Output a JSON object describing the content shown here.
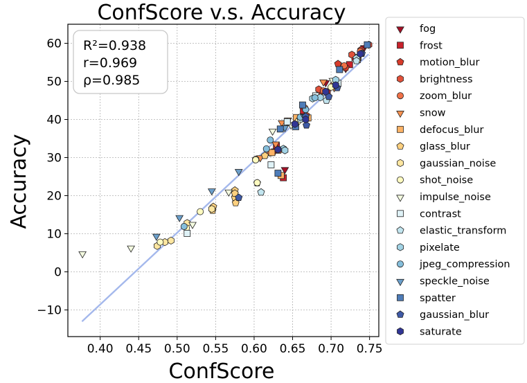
{
  "chart_data": {
    "type": "scatter",
    "title": "ConfScore  v.s.  Accuracy",
    "xlabel": "ConfScore",
    "ylabel": "Accuracy",
    "xlim": [
      0.358,
      0.762
    ],
    "ylim": [
      -17,
      65
    ],
    "xticks": [
      0.4,
      0.45,
      0.5,
      0.55,
      0.6,
      0.65,
      0.7,
      0.75
    ],
    "yticks": [
      -10,
      0,
      10,
      20,
      30,
      40,
      50,
      60
    ],
    "grid": true,
    "legend_position": "outside-right",
    "annotation": [
      "R²=0.938",
      "r=0.969",
      "ρ=0.985"
    ],
    "fit_line": {
      "x": [
        0.377,
        0.748
      ],
      "y": [
        -12.9,
        57.0
      ],
      "color": "#a4b8ec"
    },
    "series": [
      {
        "name": "fog",
        "marker": "tri-down",
        "color": "#a50f26",
        "points": [
          [
            0.693,
            49.8
          ],
          [
            0.719,
            53.5
          ],
          [
            0.743,
            59.0
          ],
          [
            0.664,
            43.1
          ],
          [
            0.64,
            27.0
          ],
          [
            0.627,
            31.9
          ],
          [
            0.681,
            46.2
          ],
          [
            0.705,
            50.3
          ]
        ]
      },
      {
        "name": "frost",
        "marker": "square",
        "color": "#c8222c",
        "points": [
          [
            0.724,
            54.4
          ],
          [
            0.731,
            56.3
          ],
          [
            0.695,
            47.3
          ],
          [
            0.638,
            24.7
          ],
          [
            0.629,
            33.1
          ],
          [
            0.664,
            42.3
          ]
        ]
      },
      {
        "name": "motion_blur",
        "marker": "pentagon",
        "color": "#d73b2a",
        "points": [
          [
            0.719,
            53.6
          ],
          [
            0.709,
            54.6
          ],
          [
            0.685,
            46.7
          ],
          [
            0.739,
            58.3
          ],
          [
            0.662,
            40.5
          ],
          [
            0.632,
            31.9
          ]
        ]
      },
      {
        "name": "brightness",
        "marker": "hexagon",
        "color": "#e2513a",
        "points": [
          [
            0.727,
            57.0
          ],
          [
            0.684,
            47.9
          ],
          [
            0.703,
            49.1
          ],
          [
            0.749,
            59.6
          ],
          [
            0.668,
            41.0
          ]
        ]
      },
      {
        "name": "zoom_blur",
        "marker": "circle",
        "color": "#ef7148",
        "points": [
          [
            0.738,
            57.9
          ],
          [
            0.717,
            54.1
          ],
          [
            0.69,
            47.5
          ],
          [
            0.666,
            43.0
          ],
          [
            0.633,
            32.0
          ],
          [
            0.621,
            31.2
          ]
        ]
      },
      {
        "name": "snow",
        "marker": "tri-down",
        "color": "#f8914f",
        "points": [
          [
            0.69,
            50.0
          ],
          [
            0.636,
            39.3
          ],
          [
            0.628,
            33.7
          ],
          [
            0.608,
            30.1
          ],
          [
            0.644,
            40.0
          ],
          [
            0.704,
            48.5
          ]
        ]
      },
      {
        "name": "defocus_blur",
        "marker": "square",
        "color": "#fdb366",
        "points": [
          [
            0.735,
            56.3
          ],
          [
            0.67,
            40.4
          ],
          [
            0.635,
            25.3
          ],
          [
            0.623,
            31.3
          ],
          [
            0.734,
            55.7
          ],
          [
            0.655,
            40.5
          ]
        ]
      },
      {
        "name": "glass_blur",
        "marker": "pentagon",
        "color": "#fdd07f",
        "points": [
          [
            0.575,
            21.4
          ],
          [
            0.547,
            17.1
          ],
          [
            0.575,
            19.5
          ],
          [
            0.576,
            18.1
          ],
          [
            0.546,
            16.1
          ],
          [
            0.614,
            30.5
          ],
          [
            0.604,
            23.3
          ],
          [
            0.575,
            20.6
          ]
        ]
      },
      {
        "name": "gaussian_noise",
        "marker": "hexagon",
        "color": "#fee6a0",
        "points": [
          [
            0.474,
            6.8
          ],
          [
            0.484,
            7.8
          ],
          [
            0.492,
            8.2
          ],
          [
            0.513,
            12.8
          ],
          [
            0.545,
            16.5
          ],
          [
            0.602,
            29.5
          ],
          [
            0.643,
            39.4
          ],
          [
            0.708,
            49.5
          ]
        ]
      },
      {
        "name": "shot_noise",
        "marker": "circle",
        "color": "#fffbc0",
        "points": [
          [
            0.478,
            7.8
          ],
          [
            0.512,
            11.5
          ],
          [
            0.53,
            15.8
          ],
          [
            0.602,
            29.4
          ],
          [
            0.604,
            23.4
          ],
          [
            0.657,
            39.5
          ],
          [
            0.7,
            48.5
          ]
        ]
      },
      {
        "name": "impulse_noise",
        "marker": "tri-down",
        "color": "#f4fbe0",
        "points": [
          [
            0.377,
            4.9
          ],
          [
            0.44,
            6.4
          ],
          [
            0.52,
            12.6
          ],
          [
            0.567,
            21.1
          ],
          [
            0.624,
            37.1
          ],
          [
            0.648,
            38.7
          ],
          [
            0.702,
            50.4
          ]
        ]
      },
      {
        "name": "contrast",
        "marker": "square",
        "color": "#dff2f7",
        "points": [
          [
            0.513,
            10.1
          ],
          [
            0.622,
            28.1
          ],
          [
            0.643,
            39.4
          ],
          [
            0.68,
            46.2
          ],
          [
            0.709,
            49.5
          ]
        ]
      },
      {
        "name": "elastic_transform",
        "marker": "pentagon",
        "color": "#c2e5ef",
        "points": [
          [
            0.609,
            20.9
          ],
          [
            0.66,
            40.1
          ],
          [
            0.694,
            45.0
          ],
          [
            0.733,
            56.1
          ],
          [
            0.733,
            55.4
          ]
        ]
      },
      {
        "name": "pixelate",
        "marker": "hexagon",
        "color": "#a2d3e5",
        "points": [
          [
            0.638,
            32.3
          ],
          [
            0.676,
            45.5
          ],
          [
            0.686,
            45.8
          ],
          [
            0.706,
            50.4
          ],
          [
            0.64,
            31.9
          ]
        ]
      },
      {
        "name": "jpeg_compression",
        "marker": "circle",
        "color": "#85bedb",
        "points": [
          [
            0.509,
            11.9
          ],
          [
            0.616,
            32.3
          ],
          [
            0.621,
            34.6
          ],
          [
            0.66,
            40.6
          ],
          [
            0.679,
            45.7
          ],
          [
            0.667,
            42.6
          ]
        ]
      },
      {
        "name": "speckle_noise",
        "marker": "tri-down",
        "color": "#6b9fcb",
        "points": [
          [
            0.473,
            9.5
          ],
          [
            0.503,
            14.4
          ],
          [
            0.545,
            21.4
          ],
          [
            0.58,
            26.5
          ],
          [
            0.64,
            38.0
          ],
          [
            0.665,
            40.9
          ]
        ]
      },
      {
        "name": "spatter",
        "marker": "square",
        "color": "#4e7cb8",
        "points": [
          [
            0.631,
            25.9
          ],
          [
            0.634,
            37.5
          ],
          [
            0.654,
            38.1
          ],
          [
            0.663,
            43.8
          ],
          [
            0.711,
            53.1
          ],
          [
            0.747,
            59.6
          ]
        ]
      },
      {
        "name": "gaussian_blur",
        "marker": "pentagon",
        "color": "#3f5aa6",
        "points": [
          [
            0.58,
            19.5
          ],
          [
            0.668,
            38.5
          ],
          [
            0.697,
            46.0
          ],
          [
            0.708,
            48.3
          ],
          [
            0.667,
            40.8
          ],
          [
            0.74,
            57.3
          ]
        ]
      },
      {
        "name": "saturate",
        "marker": "hexagon",
        "color": "#313695",
        "points": [
          [
            0.631,
            32.1
          ],
          [
            0.653,
            38.8
          ],
          [
            0.667,
            40.0
          ],
          [
            0.693,
            47.3
          ],
          [
            0.706,
            49.0
          ],
          [
            0.738,
            57.2
          ]
        ]
      }
    ]
  }
}
